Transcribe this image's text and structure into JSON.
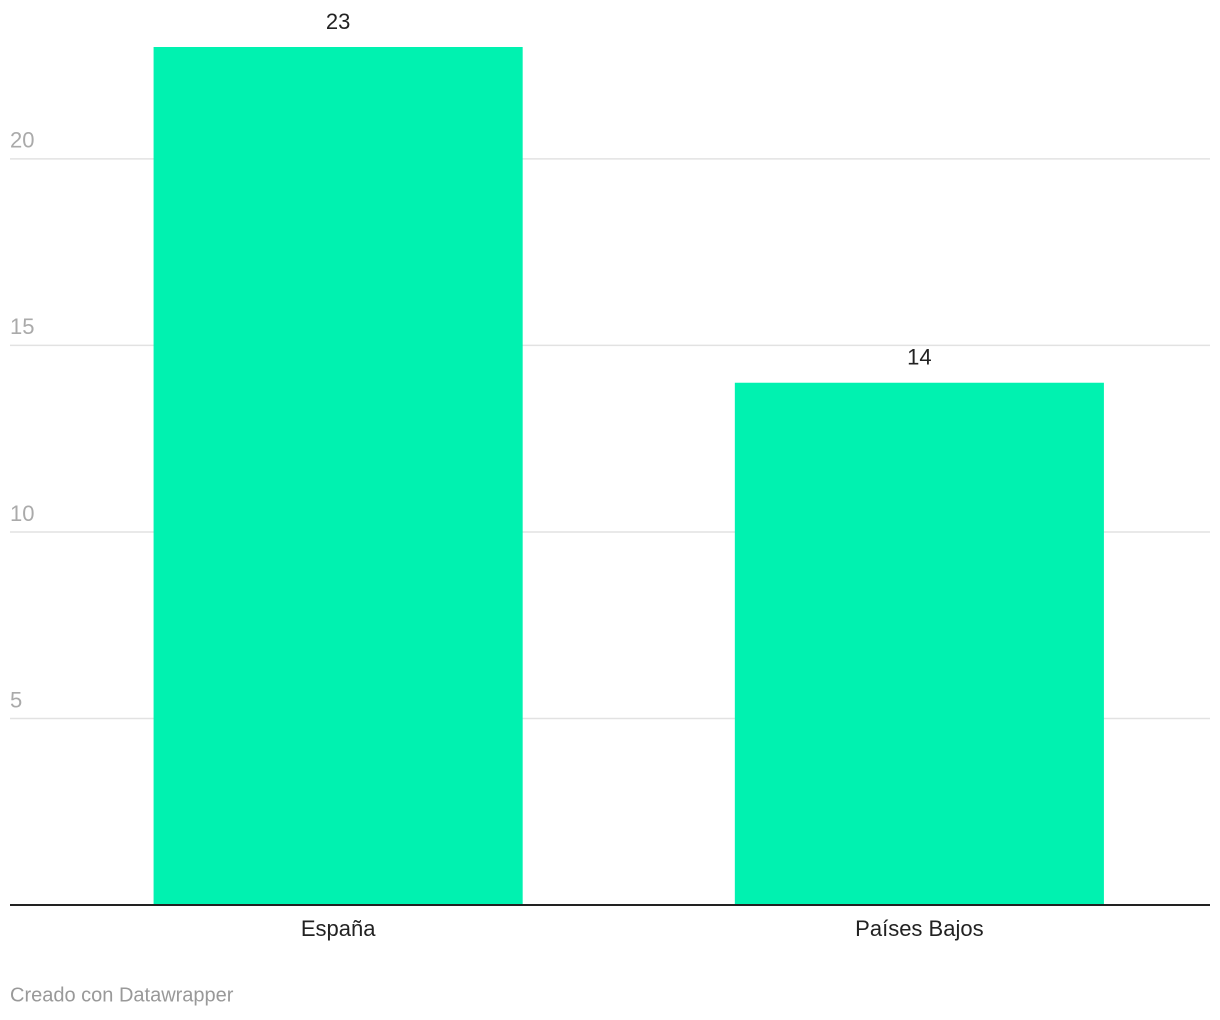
{
  "chart_data": {
    "type": "bar",
    "categories": [
      "España",
      "Países Bajos"
    ],
    "values": [
      23,
      14
    ],
    "color": "#00f2b0",
    "ylim": [
      0,
      23
    ],
    "yticks": [
      5,
      10,
      15,
      20
    ],
    "grid": true,
    "credit": "Creado con Datawrapper"
  }
}
